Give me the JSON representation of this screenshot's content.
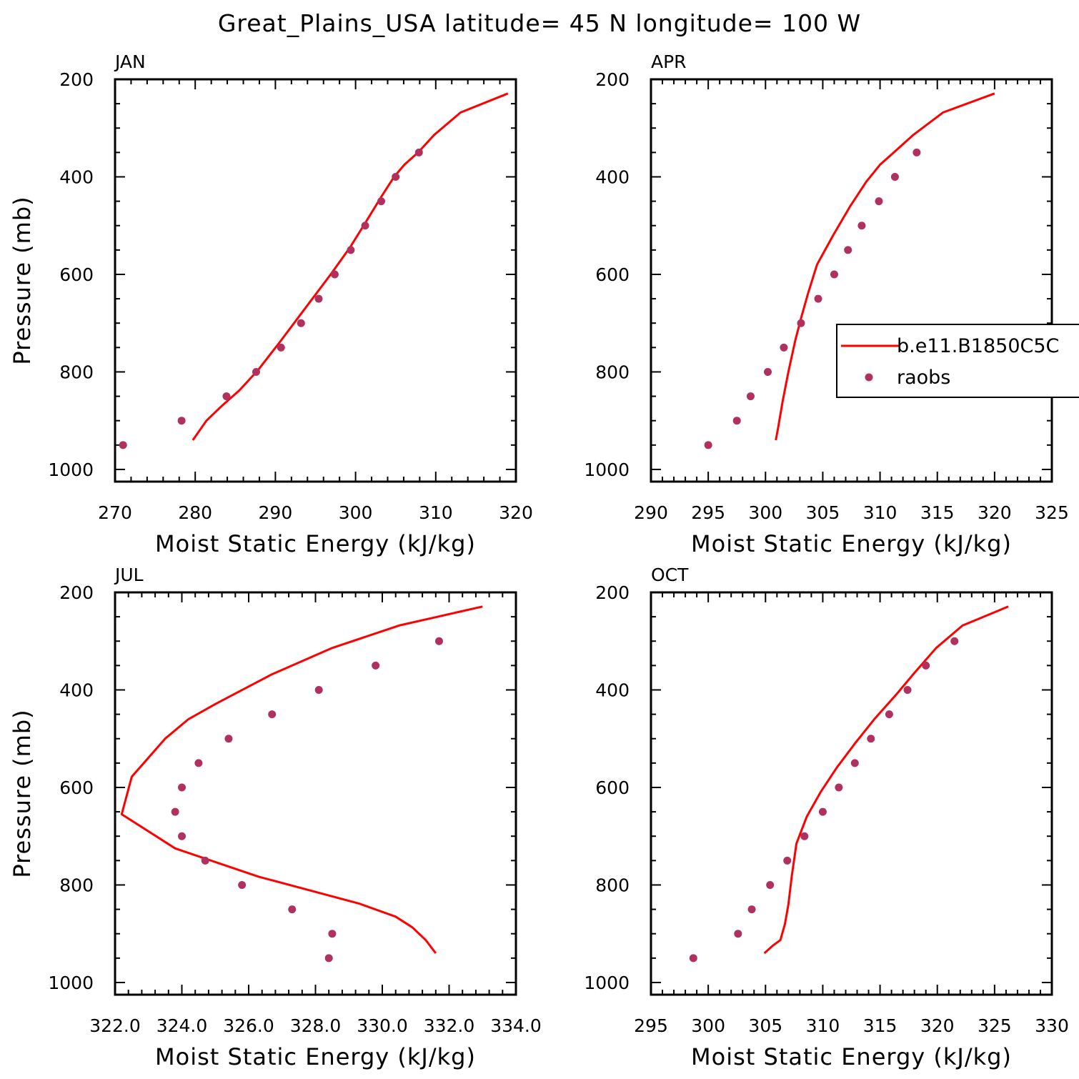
{
  "title": "Great_Plains_USA  latitude= 45 N longitude= 100 W",
  "chart_data": [
    {
      "type": "line",
      "panel": "JAN",
      "xlabel": "Moist Static Energy (kJ/kg)",
      "ylabel": "Pressure (mb)",
      "xlim": [
        270,
        320
      ],
      "ylim": [
        1025,
        200
      ],
      "xticks": [
        "270",
        "280",
        "290",
        "300",
        "310",
        "320"
      ],
      "yticks": [
        "200",
        "400",
        "600",
        "800",
        "1000"
      ],
      "legend": false,
      "series": [
        {
          "name": "b.e11.B1850C5C",
          "kind": "line",
          "color": "#ff0000",
          "x": [
            319.0,
            313.1,
            309.8,
            307.8,
            306.1,
            304.8,
            303.2,
            301.3,
            299.3,
            296.9,
            293.7,
            290.5,
            287.8,
            285.5,
            283.3,
            281.4,
            279.7
          ],
          "y": [
            229,
            268,
            314,
            350,
            375,
            400,
            441,
            492,
            545,
            600,
            670,
            740,
            797,
            838,
            870,
            900,
            940
          ]
        },
        {
          "name": "raobs",
          "kind": "scatter",
          "color": "#b03060",
          "x": [
            271.0,
            278.3,
            283.9,
            287.6,
            290.7,
            293.2,
            295.4,
            297.4,
            299.4,
            301.2,
            303.2,
            305.0,
            307.9
          ],
          "y": [
            950,
            900,
            850,
            800,
            750,
            700,
            650,
            600,
            550,
            500,
            450,
            400,
            350
          ]
        }
      ]
    },
    {
      "type": "line",
      "panel": "APR",
      "xlabel": "Moist Static Energy (kJ/kg)",
      "ylabel": "",
      "xlim": [
        290,
        325
      ],
      "ylim": [
        1025,
        200
      ],
      "xticks": [
        "290",
        "295",
        "300",
        "305",
        "310",
        "315",
        "320",
        "325"
      ],
      "yticks": [
        "200",
        "400",
        "600",
        "800",
        "1000"
      ],
      "legend": true,
      "legend_position": "right",
      "legend_items": [
        {
          "label": "b.e11.B1850C5C",
          "kind": "line",
          "color": "#ff0000"
        },
        {
          "label": "raobs",
          "kind": "scatter",
          "color": "#b03060"
        }
      ],
      "series": [
        {
          "name": "b.e11.B1850C5C",
          "kind": "line",
          "color": "#ff0000",
          "x": [
            320.0,
            315.5,
            312.9,
            311.2,
            310.0,
            308.8,
            307.4,
            305.9,
            304.5,
            303.7,
            303.1,
            302.6,
            302.0,
            301.5,
            301.1,
            300.9
          ],
          "y": [
            229,
            268,
            314,
            350,
            375,
            410,
            460,
            520,
            580,
            640,
            690,
            735,
            800,
            860,
            915,
            940
          ]
        },
        {
          "name": "raobs",
          "kind": "scatter",
          "color": "#b03060",
          "x": [
            295.0,
            297.5,
            298.7,
            300.2,
            301.6,
            303.1,
            304.6,
            306.0,
            307.2,
            308.4,
            309.9,
            311.3,
            313.2
          ],
          "y": [
            950,
            900,
            850,
            800,
            750,
            700,
            650,
            600,
            550,
            500,
            450,
            400,
            350
          ]
        }
      ]
    },
    {
      "type": "line",
      "panel": "JUL",
      "xlabel": "Moist Static Energy (kJ/kg)",
      "ylabel": "Pressure (mb)",
      "xlim": [
        322,
        334
      ],
      "ylim": [
        1025,
        200
      ],
      "xticks": [
        "322.0",
        "324.0",
        "326.0",
        "328.0",
        "330.0",
        "332.0",
        "334.0"
      ],
      "yticks": [
        "200",
        "400",
        "600",
        "800",
        "1000"
      ],
      "legend": false,
      "series": [
        {
          "name": "b.e11.B1850C5C",
          "kind": "line",
          "color": "#ff0000",
          "x": [
            333.0,
            330.5,
            328.5,
            326.7,
            325.0,
            324.2,
            323.5,
            322.5,
            322.2,
            323.8,
            326.3,
            329.3,
            330.4,
            330.9,
            331.3,
            331.6
          ],
          "y": [
            229,
            268,
            314,
            368,
            429,
            460,
            500,
            578,
            655,
            725,
            783,
            838,
            865,
            887,
            913,
            940
          ]
        },
        {
          "name": "raobs",
          "kind": "scatter",
          "color": "#b03060",
          "x": [
            328.4,
            328.5,
            327.3,
            325.8,
            324.7,
            324.0,
            323.8,
            324.0,
            324.5,
            325.4,
            326.7,
            328.1,
            329.8,
            331.7
          ],
          "y": [
            950,
            900,
            850,
            800,
            750,
            700,
            650,
            600,
            550,
            500,
            450,
            400,
            350,
            300
          ]
        }
      ]
    },
    {
      "type": "line",
      "panel": "OCT",
      "xlabel": "Moist Static Energy (kJ/kg)",
      "ylabel": "",
      "xlim": [
        295,
        330
      ],
      "ylim": [
        1025,
        200
      ],
      "xticks": [
        "295",
        "300",
        "305",
        "310",
        "315",
        "320",
        "325",
        "330"
      ],
      "yticks": [
        "200",
        "400",
        "600",
        "800",
        "1000"
      ],
      "legend": false,
      "series": [
        {
          "name": "b.e11.B1850C5C",
          "kind": "line",
          "color": "#ff0000",
          "x": [
            326.2,
            322.2,
            319.9,
            318.0,
            316.4,
            314.5,
            312.8,
            311.2,
            309.8,
            308.6,
            307.7,
            307.3,
            307.0,
            306.7,
            306.3,
            305.6,
            304.9
          ],
          "y": [
            229,
            268,
            314,
            365,
            410,
            460,
            510,
            560,
            610,
            660,
            715,
            780,
            840,
            880,
            913,
            925,
            940
          ]
        },
        {
          "name": "raobs",
          "kind": "scatter",
          "color": "#b03060",
          "x": [
            298.7,
            302.6,
            303.8,
            305.4,
            306.9,
            308.4,
            310.0,
            311.4,
            312.8,
            314.2,
            315.8,
            317.4,
            319.0,
            321.5
          ],
          "y": [
            950,
            900,
            850,
            800,
            750,
            700,
            650,
            600,
            550,
            500,
            450,
            400,
            350,
            300
          ]
        }
      ]
    }
  ]
}
